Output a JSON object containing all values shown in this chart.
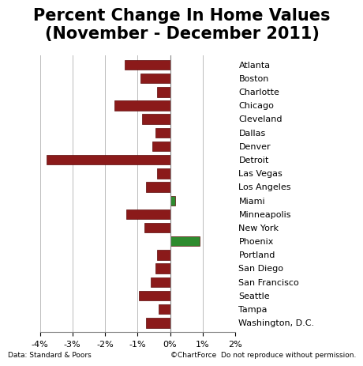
{
  "title": "Percent Change In Home Values\n(November - December 2011)",
  "cities": [
    "Atlanta",
    "Boston",
    "Charlotte",
    "Chicago",
    "Cleveland",
    "Dallas",
    "Denver",
    "Detroit",
    "Las Vegas",
    "Los Angeles",
    "Miami",
    "Minneapolis",
    "New York",
    "Phoenix",
    "Portland",
    "San Diego",
    "San Francisco",
    "Seattle",
    "Tampa",
    "Washington, D.C."
  ],
  "values": [
    -1.4,
    -0.9,
    -0.4,
    -1.7,
    -0.85,
    -0.45,
    -0.55,
    -3.8,
    -0.4,
    -0.75,
    0.15,
    -1.35,
    -0.8,
    0.9,
    -0.4,
    -0.45,
    -0.6,
    -0.95,
    -0.35,
    -0.75
  ],
  "bar_colors": [
    "#8B1A1A",
    "#8B1A1A",
    "#8B1A1A",
    "#8B1A1A",
    "#8B1A1A",
    "#8B1A1A",
    "#8B1A1A",
    "#8B1A1A",
    "#8B1A1A",
    "#8B1A1A",
    "#2E8B2E",
    "#8B1A1A",
    "#8B1A1A",
    "#2E8B2E",
    "#8B1A1A",
    "#8B1A1A",
    "#8B1A1A",
    "#8B1A1A",
    "#8B1A1A",
    "#8B1A1A"
  ],
  "xlim": [
    -4.0,
    2.0
  ],
  "xticks": [
    -4,
    -3,
    -2,
    -1,
    0,
    1,
    2
  ],
  "xtick_labels": [
    "-4%",
    "-3%",
    "-2%",
    "-1%",
    "0%",
    "1%",
    "2%"
  ],
  "xlabel_left": "Data: Standard & Poors",
  "xlabel_right": "©ChartForce  Do not reproduce without permission.",
  "bg_color": "#FFFFFF",
  "grid_color": "#BBBBBB",
  "bar_edge_color": "#5C0A0A",
  "title_fontsize": 15,
  "tick_label_fontsize": 8,
  "city_label_fontsize": 8
}
